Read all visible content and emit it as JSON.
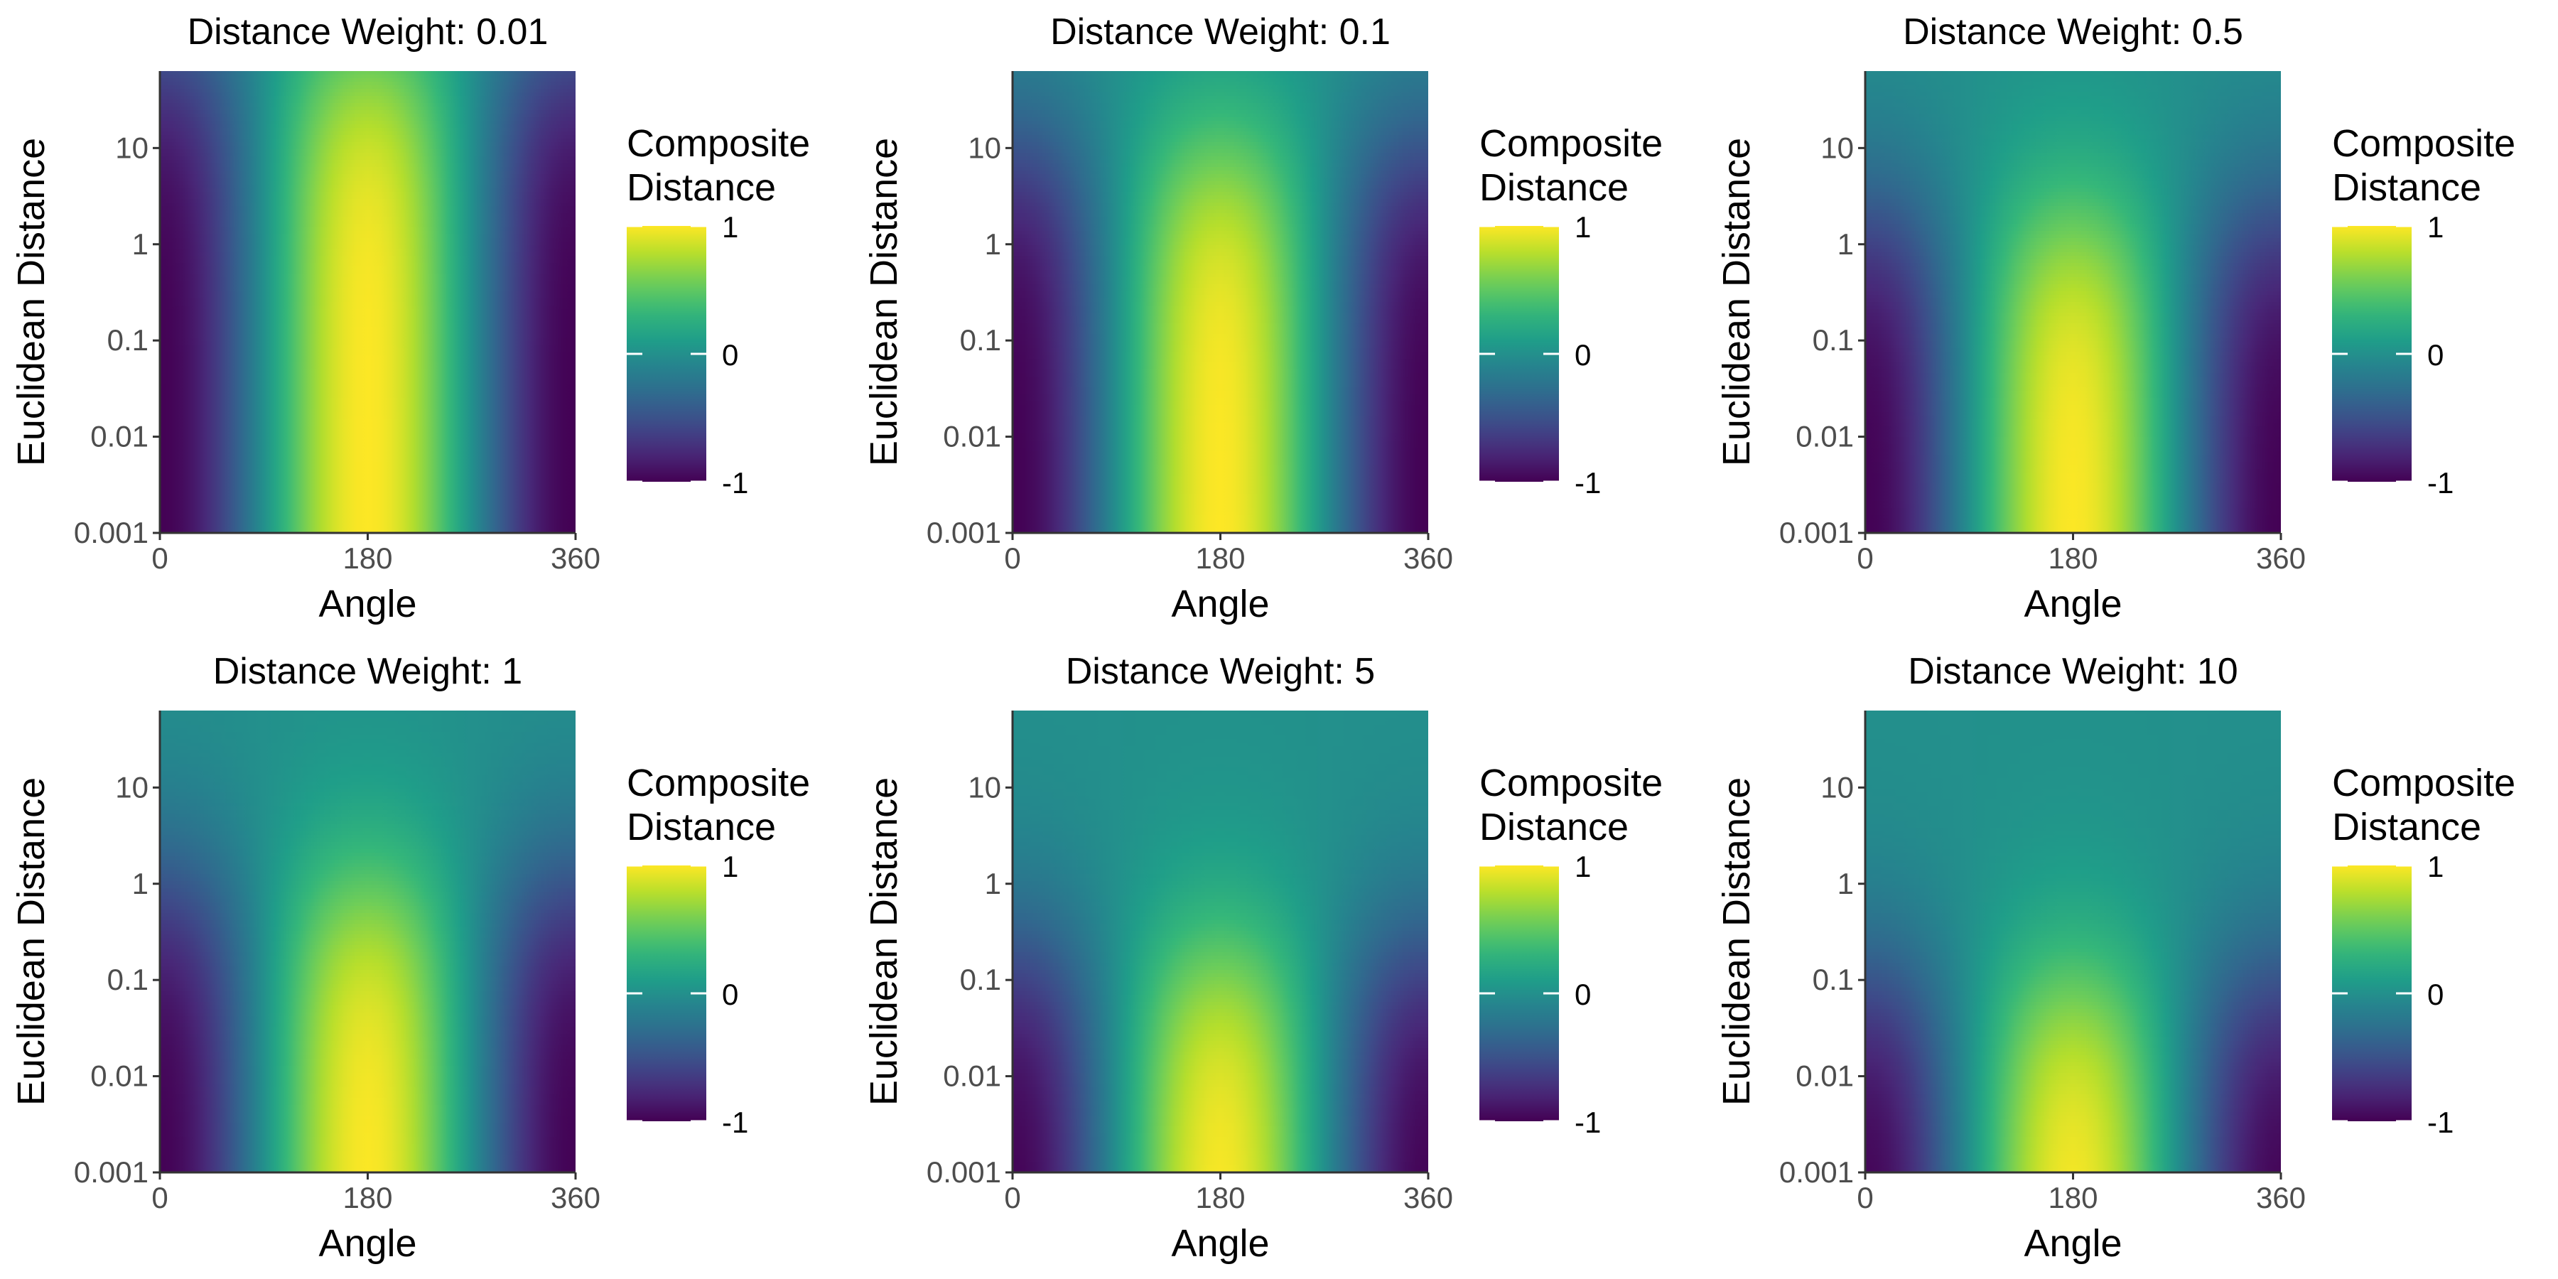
{
  "chart_data": [
    {
      "type": "heatmap",
      "title": "Distance Weight: 0.01",
      "distance_weight": 0.01,
      "xlabel": "Angle",
      "ylabel": "Euclidean Distance",
      "x_ticks": [
        "0",
        "180",
        "360"
      ],
      "x_tick_values": [
        0,
        180,
        360
      ],
      "xlim": [
        0,
        360
      ],
      "y_ticks": [
        "0.001",
        "0.01",
        "0.1",
        "1",
        "10"
      ],
      "y_tick_values": [
        0.001,
        0.01,
        0.1,
        1,
        10
      ],
      "y_scale": "log",
      "legend": {
        "title_lines": [
          "Composite",
          "Distance"
        ],
        "ticks": [
          "1",
          "0",
          "-1"
        ],
        "tick_values": [
          1,
          0,
          -1
        ],
        "range": [
          -1,
          1
        ],
        "palette": "viridis",
        "placement": "right"
      }
    },
    {
      "type": "heatmap",
      "title": "Distance Weight: 0.1",
      "distance_weight": 0.1,
      "xlabel": "Angle",
      "ylabel": "Euclidean Distance",
      "x_ticks": [
        "0",
        "180",
        "360"
      ],
      "x_tick_values": [
        0,
        180,
        360
      ],
      "xlim": [
        0,
        360
      ],
      "y_ticks": [
        "0.001",
        "0.01",
        "0.1",
        "1",
        "10"
      ],
      "y_tick_values": [
        0.001,
        0.01,
        0.1,
        1,
        10
      ],
      "y_scale": "log",
      "legend": {
        "title_lines": [
          "Composite",
          "Distance"
        ],
        "ticks": [
          "1",
          "0",
          "-1"
        ],
        "tick_values": [
          1,
          0,
          -1
        ],
        "range": [
          -1,
          1
        ],
        "palette": "viridis",
        "placement": "right"
      }
    },
    {
      "type": "heatmap",
      "title": "Distance Weight: 0.5",
      "distance_weight": 0.5,
      "xlabel": "Angle",
      "ylabel": "Euclidean Distance",
      "x_ticks": [
        "0",
        "180",
        "360"
      ],
      "x_tick_values": [
        0,
        180,
        360
      ],
      "xlim": [
        0,
        360
      ],
      "y_ticks": [
        "0.001",
        "0.01",
        "0.1",
        "1",
        "10"
      ],
      "y_tick_values": [
        0.001,
        0.01,
        0.1,
        1,
        10
      ],
      "y_scale": "log",
      "legend": {
        "title_lines": [
          "Composite",
          "Distance"
        ],
        "ticks": [
          "1",
          "0",
          "-1"
        ],
        "tick_values": [
          1,
          0,
          -1
        ],
        "range": [
          -1,
          1
        ],
        "palette": "viridis",
        "placement": "right"
      }
    },
    {
      "type": "heatmap",
      "title": "Distance Weight: 1",
      "distance_weight": 1,
      "xlabel": "Angle",
      "ylabel": "Euclidean Distance",
      "x_ticks": [
        "0",
        "180",
        "360"
      ],
      "x_tick_values": [
        0,
        180,
        360
      ],
      "xlim": [
        0,
        360
      ],
      "y_ticks": [
        "0.001",
        "0.01",
        "0.1",
        "1",
        "10"
      ],
      "y_tick_values": [
        0.001,
        0.01,
        0.1,
        1,
        10
      ],
      "y_scale": "log",
      "legend": {
        "title_lines": [
          "Composite",
          "Distance"
        ],
        "ticks": [
          "1",
          "0",
          "-1"
        ],
        "tick_values": [
          1,
          0,
          -1
        ],
        "range": [
          -1,
          1
        ],
        "palette": "viridis",
        "placement": "right"
      }
    },
    {
      "type": "heatmap",
      "title": "Distance Weight: 5",
      "distance_weight": 5,
      "xlabel": "Angle",
      "ylabel": "Euclidean Distance",
      "x_ticks": [
        "0",
        "180",
        "360"
      ],
      "x_tick_values": [
        0,
        180,
        360
      ],
      "xlim": [
        0,
        360
      ],
      "y_ticks": [
        "0.001",
        "0.01",
        "0.1",
        "1",
        "10"
      ],
      "y_tick_values": [
        0.001,
        0.01,
        0.1,
        1,
        10
      ],
      "y_scale": "log",
      "legend": {
        "title_lines": [
          "Composite",
          "Distance"
        ],
        "ticks": [
          "1",
          "0",
          "-1"
        ],
        "tick_values": [
          1,
          0,
          -1
        ],
        "range": [
          -1,
          1
        ],
        "palette": "viridis",
        "placement": "right"
      }
    },
    {
      "type": "heatmap",
      "title": "Distance Weight: 10",
      "distance_weight": 10,
      "xlabel": "Angle",
      "ylabel": "Euclidean Distance",
      "x_ticks": [
        "0",
        "180",
        "360"
      ],
      "x_tick_values": [
        0,
        180,
        360
      ],
      "xlim": [
        0,
        360
      ],
      "y_ticks": [
        "0.001",
        "0.01",
        "0.1",
        "1",
        "10"
      ],
      "y_tick_values": [
        0.001,
        0.01,
        0.1,
        1,
        10
      ],
      "y_scale": "log",
      "legend": {
        "title_lines": [
          "Composite",
          "Distance"
        ],
        "ticks": [
          "1",
          "0",
          "-1"
        ],
        "tick_values": [
          1,
          0,
          -1
        ],
        "range": [
          -1,
          1
        ],
        "palette": "viridis",
        "placement": "right"
      }
    }
  ]
}
